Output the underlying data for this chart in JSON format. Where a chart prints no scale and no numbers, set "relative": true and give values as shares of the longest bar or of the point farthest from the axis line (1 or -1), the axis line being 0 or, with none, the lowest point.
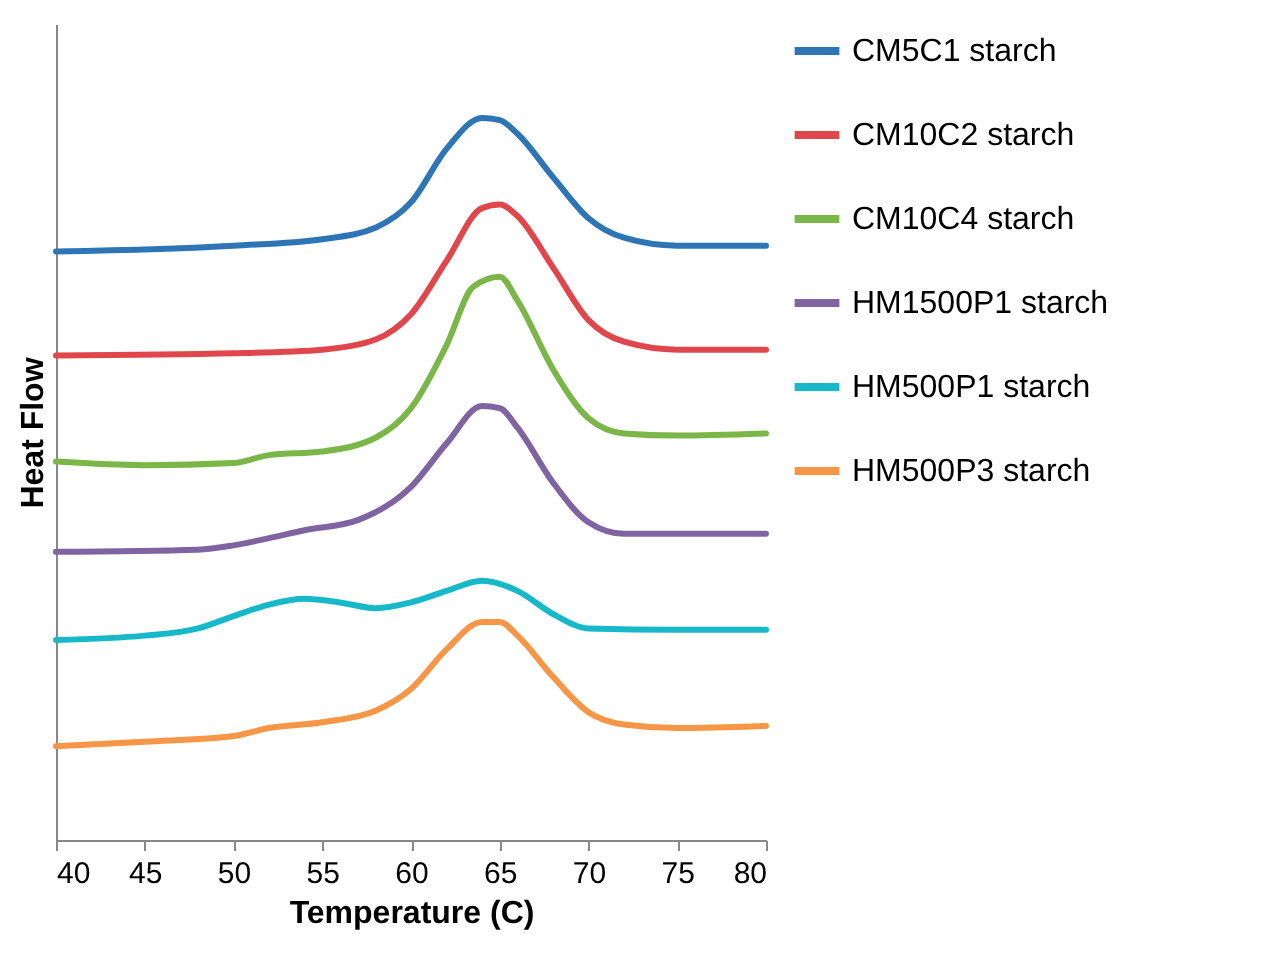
{
  "chart_data": {
    "type": "line",
    "relative": true,
    "xlabel": "Temperature (C)",
    "ylabel": "Heat Flow",
    "xlim": [
      40,
      80
    ],
    "xticks": [
      40,
      45,
      50,
      55,
      60,
      65,
      70,
      75,
      80
    ],
    "grid": false,
    "legend": "right",
    "marker": "none",
    "line_style": "solid",
    "series": [
      {
        "name": "CM5C1 starch",
        "color": "#2e75b6",
        "x": [
          40,
          50,
          55,
          58,
          60,
          62,
          64,
          65,
          66,
          68,
          70,
          72,
          75,
          80
        ],
        "values": [
          0.815,
          0.823,
          0.832,
          0.848,
          0.883,
          0.957,
          1,
          0.997,
          0.978,
          0.918,
          0.861,
          0.834,
          0.823,
          0.823
        ]
      },
      {
        "name": "CM10C2 starch",
        "color": "#e0474c",
        "x": [
          40,
          50,
          55,
          58,
          60,
          62,
          64,
          65,
          66,
          68,
          70,
          72,
          75,
          80
        ],
        "values": [
          0.671,
          0.674,
          0.679,
          0.693,
          0.728,
          0.802,
          0.875,
          0.88,
          0.864,
          0.793,
          0.72,
          0.69,
          0.679,
          0.679
        ]
      },
      {
        "name": "CM10C4 starch",
        "color": "#7ab648",
        "x": [
          40,
          45,
          50,
          52,
          55,
          58,
          60,
          62,
          63.5,
          65,
          66,
          68,
          70,
          72,
          75,
          80
        ],
        "values": [
          0.524,
          0.519,
          0.522,
          0.533,
          0.538,
          0.557,
          0.598,
          0.685,
          0.766,
          0.78,
          0.747,
          0.652,
          0.584,
          0.563,
          0.56,
          0.563
        ]
      },
      {
        "name": "HM1500P1 starch",
        "color": "#8064a2",
        "x": [
          40,
          48,
          50,
          52,
          54,
          57,
          60,
          62,
          64,
          65,
          66,
          68,
          70,
          72,
          80
        ],
        "values": [
          0.399,
          0.402,
          0.408,
          0.418,
          0.429,
          0.443,
          0.489,
          0.549,
          0.601,
          0.598,
          0.571,
          0.495,
          0.44,
          0.424,
          0.424
        ]
      },
      {
        "name": "HM500P1 starch",
        "color": "#17b8c8",
        "x": [
          40,
          45,
          48,
          50,
          52,
          54,
          56,
          58,
          60,
          62,
          64,
          66,
          68,
          70,
          75,
          80
        ],
        "values": [
          0.277,
          0.283,
          0.293,
          0.31,
          0.326,
          0.334,
          0.329,
          0.321,
          0.329,
          0.345,
          0.359,
          0.345,
          0.313,
          0.293,
          0.291,
          0.291
        ]
      },
      {
        "name": "HM500P3 starch",
        "color": "#f79646",
        "x": [
          40,
          45,
          50,
          52,
          55,
          58,
          60,
          62,
          64,
          65,
          66,
          68,
          70,
          72,
          75,
          80
        ],
        "values": [
          0.13,
          0.136,
          0.144,
          0.155,
          0.163,
          0.179,
          0.209,
          0.264,
          0.302,
          0.302,
          0.283,
          0.226,
          0.177,
          0.16,
          0.155,
          0.158
        ]
      }
    ]
  }
}
